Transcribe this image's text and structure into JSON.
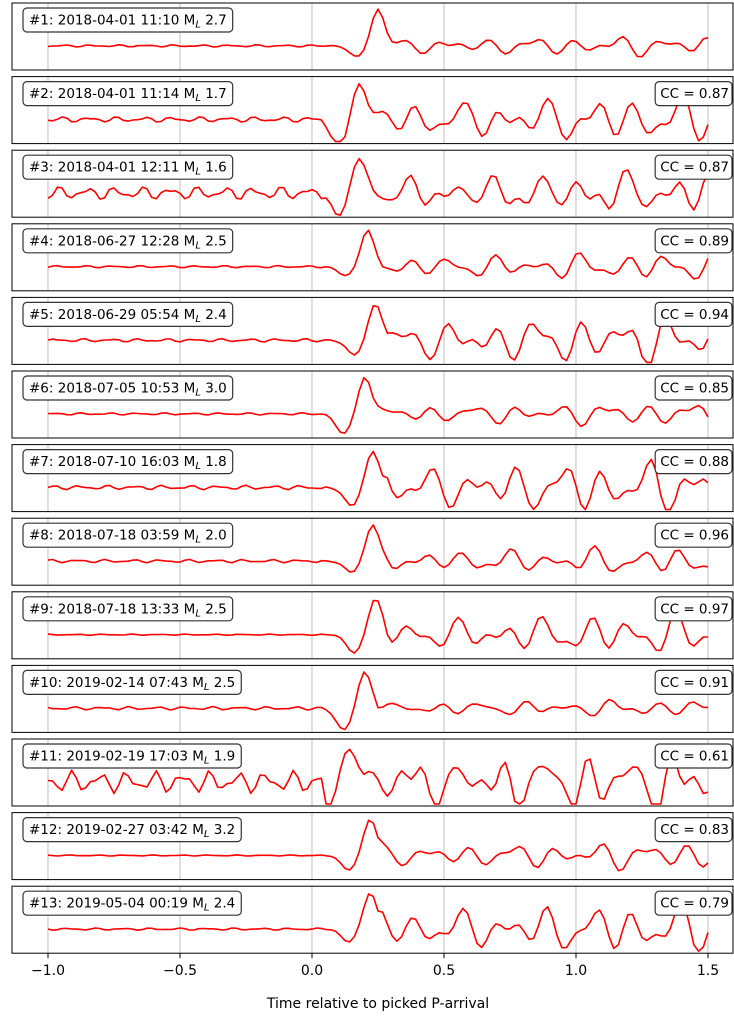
{
  "chart_data": {
    "type": "line",
    "xlabel": "Time relative to picked P-arrival",
    "xlim": [
      -1.0,
      1.5
    ],
    "xticks": [
      -1.0,
      -0.5,
      0.0,
      0.5,
      1.0,
      1.5
    ],
    "xtick_labels": [
      "−1.0",
      "−0.5",
      "0.0",
      "0.5",
      "1.0",
      "1.5"
    ],
    "grid": "vertical",
    "line_color": "#ff0000",
    "panels": [
      {
        "id": "#1",
        "date": "2018-04-01",
        "time": "11:10",
        "ml": "2.7",
        "cc": "",
        "noise": 0.02,
        "peak_t": 0.25,
        "peak_a": 1.0,
        "trough_a": -0.3,
        "coda": 0.22
      },
      {
        "id": "#2",
        "date": "2018-04-01",
        "time": "11:14",
        "ml": "1.7",
        "cc": "0.87",
        "noise": 0.05,
        "peak_t": 0.18,
        "peak_a": 1.0,
        "trough_a": -0.8,
        "coda": 0.5
      },
      {
        "id": "#3",
        "date": "2018-04-01",
        "time": "12:11",
        "ml": "1.6",
        "cc": "0.87",
        "noise": 0.12,
        "peak_t": 0.18,
        "peak_a": 1.0,
        "trough_a": -0.6,
        "coda": 0.45
      },
      {
        "id": "#4",
        "date": "2018-06-27",
        "time": "12:28",
        "ml": "2.5",
        "cc": "0.89",
        "noise": 0.02,
        "peak_t": 0.21,
        "peak_a": 1.0,
        "trough_a": -0.25,
        "coda": 0.3
      },
      {
        "id": "#5",
        "date": "2018-06-29",
        "time": "05:54",
        "ml": "2.4",
        "cc": "0.94",
        "noise": 0.03,
        "peak_t": 0.24,
        "peak_a": 1.0,
        "trough_a": -0.4,
        "coda": 0.55
      },
      {
        "id": "#6",
        "date": "2018-07-05",
        "time": "10:53",
        "ml": "3.0",
        "cc": "0.85",
        "noise": 0.02,
        "peak_t": 0.2,
        "peak_a": 1.0,
        "trough_a": -0.55,
        "coda": 0.25
      },
      {
        "id": "#7",
        "date": "2018-07-10",
        "time": "16:03",
        "ml": "1.8",
        "cc": "0.88",
        "noise": 0.04,
        "peak_t": 0.23,
        "peak_a": 1.0,
        "trough_a": -0.5,
        "coda": 0.6
      },
      {
        "id": "#8",
        "date": "2018-07-18",
        "time": "03:59",
        "ml": "2.0",
        "cc": "0.96",
        "noise": 0.03,
        "peak_t": 0.23,
        "peak_a": 1.0,
        "trough_a": -0.3,
        "coda": 0.3
      },
      {
        "id": "#9",
        "date": "2018-07-18",
        "time": "13:33",
        "ml": "2.5",
        "cc": "0.97",
        "noise": 0.01,
        "peak_t": 0.24,
        "peak_a": 1.0,
        "trough_a": -0.5,
        "coda": 0.45
      },
      {
        "id": "#10",
        "date": "2019-02-14",
        "time": "07:43",
        "ml": "2.5",
        "cc": "0.91",
        "noise": 0.03,
        "peak_t": 0.2,
        "peak_a": 1.0,
        "trough_a": -0.6,
        "coda": 0.18
      },
      {
        "id": "#11",
        "date": "2019-02-19",
        "time": "17:03",
        "ml": "1.9",
        "cc": "0.61",
        "noise": 0.2,
        "peak_t": 0.14,
        "peak_a": 1.0,
        "trough_a": -0.7,
        "coda": 0.65
      },
      {
        "id": "#12",
        "date": "2019-02-27",
        "time": "03:42",
        "ml": "3.2",
        "cc": "0.83",
        "noise": 0.01,
        "peak_t": 0.22,
        "peak_a": 1.0,
        "trough_a": -0.4,
        "coda": 0.3
      },
      {
        "id": "#13",
        "date": "2019-05-04",
        "time": "00:19",
        "ml": "2.4",
        "cc": "0.79",
        "noise": 0.02,
        "peak_t": 0.22,
        "peak_a": 1.0,
        "trough_a": -0.35,
        "coda": 0.55
      }
    ]
  }
}
